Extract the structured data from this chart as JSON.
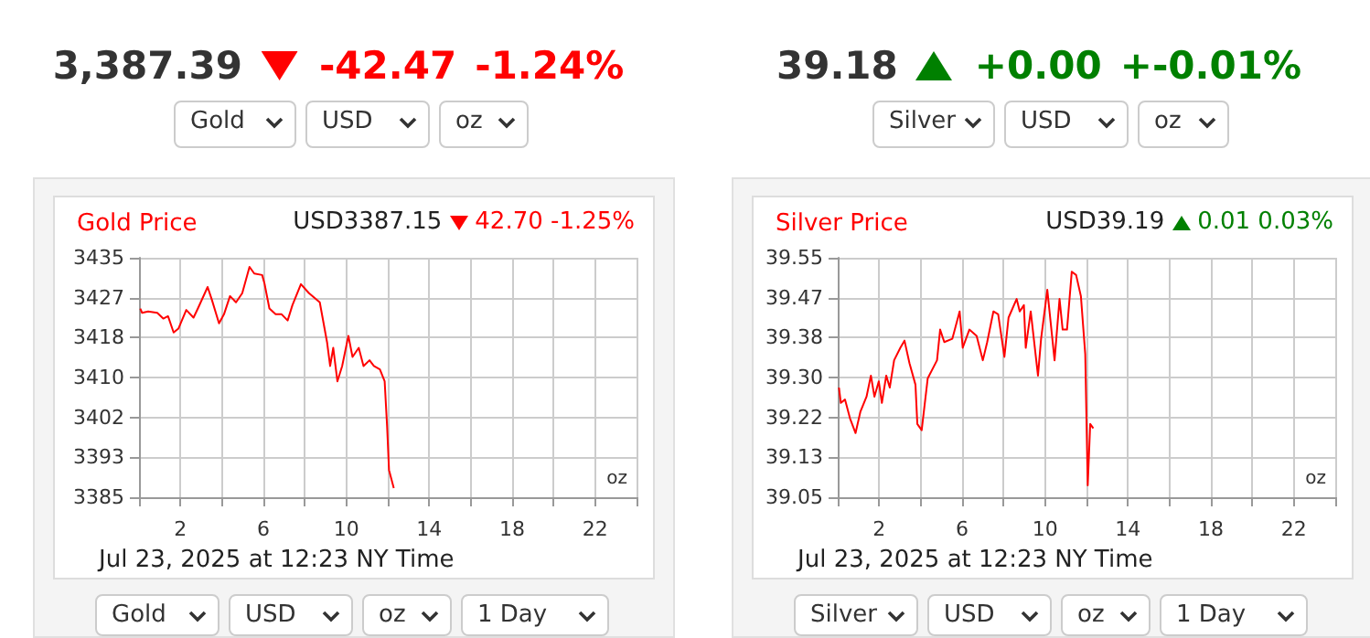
{
  "chart_data": [
    {
      "type": "line",
      "title": "Gold Price",
      "subtitle": "USD3387.15",
      "xlabel": "Jul 23, 2025 at 12:23 NY Time",
      "annotations": [
        "42.70 -1.25%",
        "3,387.39",
        "-42.47",
        "-1.24%",
        "oz",
        "Gold",
        "USD",
        "oz",
        "Gold",
        "USD",
        "oz",
        "1 Day"
      ],
      "xlim": [
        0,
        24
      ],
      "xticks": [
        {
          "value": 0,
          "label": null
        },
        2,
        {
          "value": 4,
          "label": null
        },
        6,
        {
          "value": 8,
          "label": null
        },
        10,
        {
          "value": 12,
          "label": null
        },
        14,
        {
          "value": 16,
          "label": null
        },
        18,
        {
          "value": 20,
          "label": null
        },
        22,
        {
          "value": 24,
          "label": null
        }
      ],
      "ylim": [
        3385,
        3435
      ],
      "yticks": [
        3385,
        {
          "value": 3393.33,
          "label": "3393"
        },
        {
          "value": 3401.67,
          "label": "3402"
        },
        3410,
        {
          "value": 3418.33,
          "label": "3418"
        },
        {
          "value": 3426.67,
          "label": "3427"
        },
        3435
      ],
      "grid": true,
      "marker": "none",
      "line_style": "solid",
      "series": [
        {
          "color": "#ff0000",
          "x": [
            0.06,
            0.15,
            0.44,
            0.88,
            1.17,
            1.4,
            1.67,
            1.9,
            2.28,
            2.63,
            2.84,
            3.31,
            3.51,
            3.86,
            4.1,
            4.39,
            4.68,
            4.98,
            5.33,
            5.56,
            5.94,
            6.06,
            6.29,
            6.59,
            6.88,
            7.17,
            7.4,
            7.81,
            8.2,
            8.72,
            9.07,
            9.22,
            9.37,
            9.57,
            9.8,
            10.1,
            10.3,
            10.6,
            10.83,
            11.12,
            11.33,
            11.62,
            11.85,
            11.97,
            12.06,
            12.29
          ],
          "values": [
            3424.4,
            3423.5,
            3423.8,
            3423.5,
            3422.3,
            3422.8,
            3419.4,
            3420.2,
            3424.1,
            3422.5,
            3424.4,
            3428.9,
            3426.3,
            3421.3,
            3423.2,
            3427,
            3425.7,
            3427.6,
            3433.1,
            3431.7,
            3431.4,
            3429.5,
            3424.4,
            3423.2,
            3423.2,
            3421.9,
            3425.1,
            3429.5,
            3427.6,
            3425.7,
            3417.4,
            3412.4,
            3416.2,
            3409.2,
            3412.4,
            3418.7,
            3414.3,
            3416.2,
            3412.4,
            3413.6,
            3412.4,
            3411.7,
            3409.2,
            3399.6,
            3390.7,
            3386.9
          ]
        }
      ]
    },
    {
      "type": "line",
      "title": "Silver Price",
      "subtitle": "USD39.19",
      "xlabel": "Jul 23, 2025 at 12:23 NY Time",
      "annotations": [
        "0.01 0.03%",
        "39.18",
        "+0.00",
        "+-0.01%",
        "oz",
        "Silver",
        "USD",
        "oz",
        "Silver",
        "USD",
        "oz",
        "1 Day"
      ],
      "xlim": [
        0,
        24
      ],
      "xticks": [
        {
          "value": 0,
          "label": null
        },
        2,
        {
          "value": 4,
          "label": null
        },
        6,
        {
          "value": 8,
          "label": null
        },
        10,
        {
          "value": 12,
          "label": null
        },
        14,
        {
          "value": 16,
          "label": null
        },
        18,
        {
          "value": 20,
          "label": null
        },
        22,
        {
          "value": 24,
          "label": null
        }
      ],
      "ylim": [
        39.05,
        39.55
      ],
      "yticks": [
        39.05,
        {
          "value": 39.1333,
          "label": "39.13"
        },
        {
          "value": 39.2167,
          "label": "39.22"
        },
        {
          "value": 39.3,
          "label": "39.30"
        },
        {
          "value": 39.3833,
          "label": "39.38"
        },
        {
          "value": 39.4667,
          "label": "39.47"
        },
        39.55
      ],
      "grid": true,
      "marker": "none",
      "line_style": "solid",
      "series": [
        {
          "color": "#ff0000",
          "x": [
            0.06,
            0.15,
            0.35,
            0.59,
            0.86,
            1.09,
            1.39,
            1.6,
            1.77,
            1.98,
            2.13,
            2.34,
            2.51,
            2.72,
            3.02,
            3.22,
            3.46,
            3.75,
            3.84,
            4.05,
            4.34,
            4.79,
            4.94,
            5.14,
            5.53,
            5.88,
            6.03,
            6.35,
            6.7,
            7.0,
            7.21,
            7.51,
            7.74,
            8.04,
            8.24,
            8.63,
            8.78,
            8.98,
            9.07,
            9.31,
            9.66,
            9.81,
            10.11,
            10.46,
            10.7,
            10.85,
            11.06,
            11.29,
            11.5,
            11.73,
            11.94,
            12.06,
            12.18,
            12.33
          ],
          "values": [
            39.279,
            39.247,
            39.254,
            39.215,
            39.184,
            39.228,
            39.26,
            39.304,
            39.26,
            39.292,
            39.247,
            39.304,
            39.279,
            39.336,
            39.362,
            39.377,
            39.33,
            39.285,
            39.203,
            39.19,
            39.298,
            39.336,
            39.4,
            39.374,
            39.381,
            39.438,
            39.362,
            39.4,
            39.387,
            39.336,
            39.374,
            39.438,
            39.432,
            39.343,
            39.425,
            39.464,
            39.438,
            39.451,
            39.362,
            39.438,
            39.304,
            39.381,
            39.483,
            39.336,
            39.464,
            39.4,
            39.4,
            39.521,
            39.514,
            39.47,
            39.349,
            39.075,
            39.203,
            39.194
          ]
        }
      ]
    }
  ]
}
